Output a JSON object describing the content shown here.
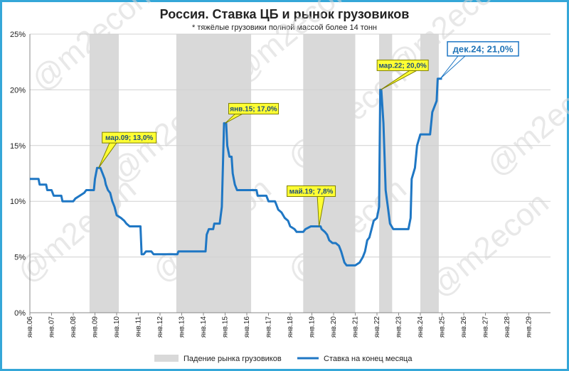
{
  "header": {
    "title": "Россия. Ставка ЦБ и рынок грузовиков",
    "subtitle": "* тяжёлые грузовики полной массой более 14 тонн"
  },
  "watermark": "@m2econ",
  "legend": {
    "recession_label": "Падение рынка грузовиков",
    "rate_label": "Ставка на конец месяца"
  },
  "colors": {
    "line": "#1f77c4",
    "band": "#d9d9d9",
    "callout_fill": "#ffff33",
    "callout_big_fill": "#ffffff",
    "frame": "#35a7d8"
  },
  "chart_data": {
    "type": "line",
    "title": "Россия. Ставка ЦБ и рынок грузовиков",
    "subtitle": "* тяжёлые грузовики полной массой более 14 тонн",
    "xlabel": "",
    "ylabel": "",
    "ylim": [
      0,
      25
    ],
    "yticks": [
      0,
      5,
      10,
      15,
      20,
      25
    ],
    "ytick_labels": [
      "0%",
      "5%",
      "10%",
      "15%",
      "20%",
      "25%"
    ],
    "xlim": [
      2006.0,
      2030.0
    ],
    "xticks": [
      2006,
      2007,
      2008,
      2009,
      2010,
      2011,
      2012,
      2013,
      2014,
      2015,
      2016,
      2017,
      2018,
      2019,
      2020,
      2021,
      2022,
      2023,
      2024,
      2025,
      2026,
      2027,
      2028,
      2029
    ],
    "xtick_labels": [
      "янв.06",
      "янв.07",
      "янв.08",
      "янв.09",
      "янв.10",
      "янв.11",
      "янв.12",
      "янв.13",
      "янв.14",
      "янв.15",
      "янв.16",
      "янв.17",
      "янв.18",
      "янв.19",
      "янв.20",
      "янв.21",
      "янв.22",
      "янв.23",
      "янв.24",
      "янв.25",
      "янв.26",
      "янв.27",
      "янв.28",
      "янв.29"
    ],
    "grid": true,
    "legend_position": "bottom",
    "bands": [
      {
        "x0": 2008.75,
        "x1": 2010.1
      },
      {
        "x0": 2012.75,
        "x1": 2016.2
      },
      {
        "x0": 2018.6,
        "x1": 2021.0
      },
      {
        "x0": 2022.1,
        "x1": 2022.7
      },
      {
        "x0": 2024.0,
        "x1": 2024.85
      }
    ],
    "series": [
      {
        "name": "Ставка на конец месяца",
        "points": [
          [
            2006.0,
            12.0
          ],
          [
            2006.4,
            12.0
          ],
          [
            2006.45,
            11.5
          ],
          [
            2006.75,
            11.5
          ],
          [
            2006.8,
            11.0
          ],
          [
            2007.0,
            11.0
          ],
          [
            2007.1,
            10.5
          ],
          [
            2007.45,
            10.5
          ],
          [
            2007.5,
            10.0
          ],
          [
            2008.0,
            10.0
          ],
          [
            2008.1,
            10.25
          ],
          [
            2008.3,
            10.5
          ],
          [
            2008.5,
            10.75
          ],
          [
            2008.6,
            11.0
          ],
          [
            2008.95,
            11.0
          ],
          [
            2009.0,
            12.0
          ],
          [
            2009.1,
            13.0
          ],
          [
            2009.25,
            13.0
          ],
          [
            2009.35,
            12.5
          ],
          [
            2009.45,
            12.0
          ],
          [
            2009.5,
            11.5
          ],
          [
            2009.6,
            11.0
          ],
          [
            2009.7,
            10.75
          ],
          [
            2009.8,
            10.0
          ],
          [
            2009.9,
            9.5
          ],
          [
            2010.0,
            8.75
          ],
          [
            2010.2,
            8.5
          ],
          [
            2010.35,
            8.25
          ],
          [
            2010.45,
            8.0
          ],
          [
            2010.6,
            7.75
          ],
          [
            2010.9,
            7.75
          ],
          [
            2011.0,
            7.75
          ],
          [
            2011.1,
            7.75
          ],
          [
            2011.15,
            5.25
          ],
          [
            2011.25,
            5.25
          ],
          [
            2011.35,
            5.5
          ],
          [
            2011.6,
            5.5
          ],
          [
            2011.7,
            5.25
          ],
          [
            2012.5,
            5.25
          ],
          [
            2012.8,
            5.25
          ],
          [
            2012.85,
            5.5
          ],
          [
            2013.1,
            5.5
          ],
          [
            2014.1,
            5.5
          ],
          [
            2014.15,
            7.0
          ],
          [
            2014.25,
            7.5
          ],
          [
            2014.45,
            7.5
          ],
          [
            2014.5,
            8.0
          ],
          [
            2014.75,
            8.0
          ],
          [
            2014.85,
            9.5
          ],
          [
            2014.95,
            17.0
          ],
          [
            2015.05,
            17.0
          ],
          [
            2015.1,
            15.0
          ],
          [
            2015.2,
            14.0
          ],
          [
            2015.3,
            14.0
          ],
          [
            2015.35,
            12.5
          ],
          [
            2015.45,
            11.5
          ],
          [
            2015.55,
            11.0
          ],
          [
            2016.0,
            11.0
          ],
          [
            2016.45,
            11.0
          ],
          [
            2016.5,
            10.5
          ],
          [
            2016.9,
            10.5
          ],
          [
            2017.0,
            10.0
          ],
          [
            2017.3,
            10.0
          ],
          [
            2017.35,
            9.75
          ],
          [
            2017.45,
            9.25
          ],
          [
            2017.6,
            9.0
          ],
          [
            2017.75,
            8.5
          ],
          [
            2017.9,
            8.25
          ],
          [
            2018.0,
            7.75
          ],
          [
            2018.2,
            7.5
          ],
          [
            2018.3,
            7.25
          ],
          [
            2018.6,
            7.25
          ],
          [
            2018.7,
            7.5
          ],
          [
            2018.95,
            7.75
          ],
          [
            2019.0,
            7.75
          ],
          [
            2019.4,
            7.75
          ],
          [
            2019.45,
            7.5
          ],
          [
            2019.6,
            7.25
          ],
          [
            2019.7,
            7.0
          ],
          [
            2019.8,
            6.5
          ],
          [
            2019.95,
            6.25
          ],
          [
            2020.1,
            6.25
          ],
          [
            2020.25,
            6.0
          ],
          [
            2020.35,
            5.5
          ],
          [
            2020.5,
            4.5
          ],
          [
            2020.6,
            4.25
          ],
          [
            2021.0,
            4.25
          ],
          [
            2021.2,
            4.5
          ],
          [
            2021.35,
            5.0
          ],
          [
            2021.45,
            5.5
          ],
          [
            2021.55,
            6.5
          ],
          [
            2021.65,
            6.75
          ],
          [
            2021.75,
            7.5
          ],
          [
            2021.85,
            8.25
          ],
          [
            2022.0,
            8.5
          ],
          [
            2022.1,
            9.5
          ],
          [
            2022.15,
            20.0
          ],
          [
            2022.2,
            20.0
          ],
          [
            2022.3,
            17.0
          ],
          [
            2022.35,
            14.0
          ],
          [
            2022.4,
            11.0
          ],
          [
            2022.5,
            9.5
          ],
          [
            2022.6,
            8.0
          ],
          [
            2022.75,
            7.5
          ],
          [
            2023.0,
            7.5
          ],
          [
            2023.45,
            7.5
          ],
          [
            2023.55,
            8.5
          ],
          [
            2023.6,
            12.0
          ],
          [
            2023.75,
            13.0
          ],
          [
            2023.85,
            15.0
          ],
          [
            2024.0,
            16.0
          ],
          [
            2024.45,
            16.0
          ],
          [
            2024.55,
            18.0
          ],
          [
            2024.75,
            19.0
          ],
          [
            2024.8,
            21.0
          ],
          [
            2025.0,
            21.0
          ]
        ]
      }
    ],
    "annotations": [
      {
        "label": "мар.09; 13,0%",
        "x": 2009.17,
        "y": 13.0
      },
      {
        "label": "янв.15; 17,0%",
        "x": 2015.0,
        "y": 17.0
      },
      {
        "label": "май.19; 7,8%",
        "x": 2019.33,
        "y": 7.75
      },
      {
        "label": "мар.22; 20,0%",
        "x": 2022.17,
        "y": 20.0
      },
      {
        "label": "дек.24; 21,0%",
        "x": 2024.92,
        "y": 21.0
      }
    ]
  }
}
